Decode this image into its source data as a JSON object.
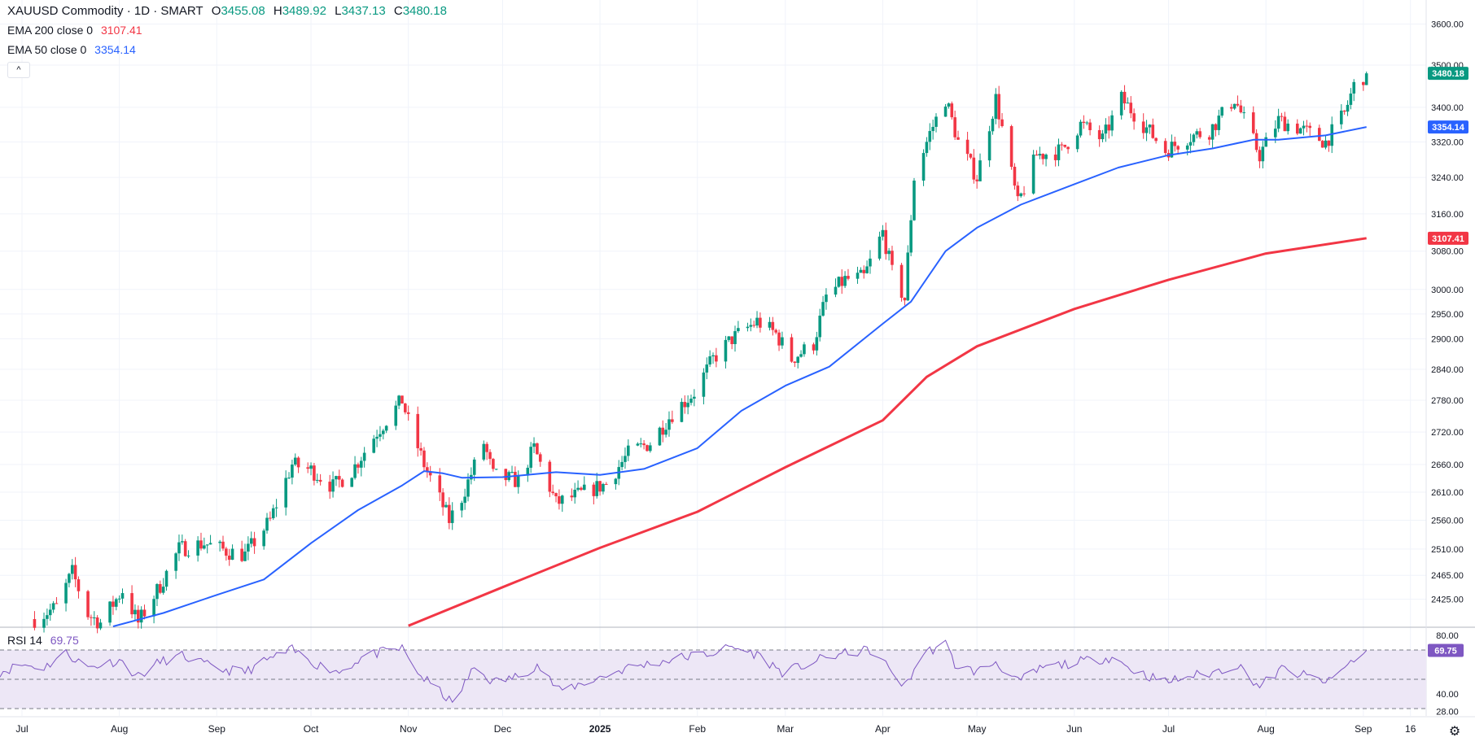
{
  "header": {
    "symbol_title": "XAUUSD Commodity · 1D · SMART",
    "ohlc": [
      {
        "key": "O",
        "value": "3455.08"
      },
      {
        "key": "H",
        "value": "3489.92"
      },
      {
        "key": "L",
        "value": "3437.13"
      },
      {
        "key": "C",
        "value": "3480.18"
      }
    ],
    "ema200_label": "EMA 200 close 0",
    "ema200_value": "3107.41",
    "ema50_label": "EMA 50 close 0",
    "ema50_value": "3354.14",
    "collapse_glyph": "^"
  },
  "rsi_header": {
    "label": "RSI 14",
    "value": "69.75"
  },
  "colors": {
    "up": "#089981",
    "down": "#f23645",
    "ema50": "#2962ff",
    "ema200": "#f23645",
    "rsi_line": "#7e57c2",
    "rsi_band": "#ede7f6",
    "grid": "#f0f3fa",
    "axis_text": "#131722"
  },
  "icons": {
    "settings": "gear-icon"
  },
  "chart_data": [
    {
      "type": "candlestick",
      "title": "XAUUSD Commodity · 1D · SMART",
      "scale": "log",
      "ylim": [
        2380,
        3660
      ],
      "xlim": [
        "2024-06-24",
        "2025-09-21"
      ],
      "y_ticks": [
        "3600.00",
        "3500.00",
        "3400.00",
        "3320.00",
        "3240.00",
        "3160.00",
        "3080.00",
        "3000.00",
        "2950.00",
        "2900.00",
        "2840.00",
        "2780.00",
        "2720.00",
        "2660.00",
        "2610.00",
        "2560.00",
        "2510.00",
        "2465.00",
        "2425.00"
      ],
      "x_ticks": [
        {
          "label": "Jul",
          "date": "2024-07-01"
        },
        {
          "label": "Aug",
          "date": "2024-08-01"
        },
        {
          "label": "Sep",
          "date": "2024-09-01"
        },
        {
          "label": "Oct",
          "date": "2024-10-01"
        },
        {
          "label": "Nov",
          "date": "2024-11-01"
        },
        {
          "label": "Dec",
          "date": "2024-12-01"
        },
        {
          "label": "2025",
          "date": "2025-01-01"
        },
        {
          "label": "Feb",
          "date": "2025-02-01"
        },
        {
          "label": "Mar",
          "date": "2025-03-01"
        },
        {
          "label": "Apr",
          "date": "2025-04-01"
        },
        {
          "label": "May",
          "date": "2025-05-01"
        },
        {
          "label": "Jun",
          "date": "2025-06-01"
        },
        {
          "label": "Jul",
          "date": "2025-07-01"
        },
        {
          "label": "Aug",
          "date": "2025-08-01"
        },
        {
          "label": "Sep",
          "date": "2025-09-01"
        },
        {
          "label": "16",
          "date": "2025-09-16"
        }
      ],
      "price_markers": [
        {
          "value": "3480.18",
          "color": "#089981"
        },
        {
          "value": "3354.14",
          "color": "#2962ff"
        },
        {
          "value": "3107.41",
          "color": "#f23645"
        }
      ],
      "price_series": [
        [
          "2024-07-05",
          2392
        ],
        [
          "2024-07-12",
          2412
        ],
        [
          "2024-07-17",
          2470
        ],
        [
          "2024-07-22",
          2400
        ],
        [
          "2024-07-26",
          2386
        ],
        [
          "2024-08-02",
          2440
        ],
        [
          "2024-08-07",
          2386
        ],
        [
          "2024-08-14",
          2448
        ],
        [
          "2024-08-20",
          2510
        ],
        [
          "2024-08-28",
          2520
        ],
        [
          "2024-09-05",
          2505
        ],
        [
          "2024-09-10",
          2500
        ],
        [
          "2024-09-18",
          2560
        ],
        [
          "2024-09-25",
          2660
        ],
        [
          "2024-10-01",
          2650
        ],
        [
          "2024-10-08",
          2620
        ],
        [
          "2024-10-14",
          2648
        ],
        [
          "2024-10-22",
          2720
        ],
        [
          "2024-10-30",
          2780
        ],
        [
          "2024-11-01",
          2740
        ],
        [
          "2024-11-06",
          2660
        ],
        [
          "2024-11-14",
          2560
        ],
        [
          "2024-11-18",
          2600
        ],
        [
          "2024-11-25",
          2700
        ],
        [
          "2024-11-28",
          2640
        ],
        [
          "2024-12-06",
          2630
        ],
        [
          "2024-12-11",
          2690
        ],
        [
          "2024-12-18",
          2590
        ],
        [
          "2024-12-25",
          2605
        ],
        [
          "2025-01-03",
          2625
        ],
        [
          "2025-01-10",
          2680
        ],
        [
          "2025-01-17",
          2700
        ],
        [
          "2025-01-24",
          2755
        ],
        [
          "2025-01-31",
          2795
        ],
        [
          "2025-02-06",
          2860
        ],
        [
          "2025-02-12",
          2900
        ],
        [
          "2025-02-20",
          2935
        ],
        [
          "2025-02-26",
          2910
        ],
        [
          "2025-03-03",
          2860
        ],
        [
          "2025-03-10",
          2890
        ],
        [
          "2025-03-14",
          2985
        ],
        [
          "2025-03-20",
          3020
        ],
        [
          "2025-03-26",
          3025
        ],
        [
          "2025-04-01",
          3120
        ],
        [
          "2025-04-04",
          3035
        ],
        [
          "2025-04-08",
          2980
        ],
        [
          "2025-04-11",
          3240
        ],
        [
          "2025-04-16",
          3340
        ],
        [
          "2025-04-21",
          3420
        ],
        [
          "2025-04-25",
          3320
        ],
        [
          "2025-05-01",
          3240
        ],
        [
          "2025-05-07",
          3420
        ],
        [
          "2025-05-14",
          3180
        ],
        [
          "2025-05-20",
          3290
        ],
        [
          "2025-05-28",
          3300
        ],
        [
          "2025-06-03",
          3360
        ],
        [
          "2025-06-10",
          3325
        ],
        [
          "2025-06-16",
          3420
        ],
        [
          "2025-06-23",
          3360
        ],
        [
          "2025-06-30",
          3300
        ],
        [
          "2025-07-07",
          3330
        ],
        [
          "2025-07-14",
          3345
        ],
        [
          "2025-07-22",
          3420
        ],
        [
          "2025-07-30",
          3290
        ],
        [
          "2025-08-05",
          3370
        ],
        [
          "2025-08-12",
          3350
        ],
        [
          "2025-08-20",
          3320
        ],
        [
          "2025-08-26",
          3385
        ],
        [
          "2025-08-29",
          3450
        ],
        [
          "2025-09-02",
          3480
        ]
      ],
      "ema50_series": [
        [
          "2024-07-30",
          2380
        ],
        [
          "2024-08-15",
          2402
        ],
        [
          "2024-09-01",
          2432
        ],
        [
          "2024-09-16",
          2458
        ],
        [
          "2024-10-01",
          2520
        ],
        [
          "2024-10-16",
          2578
        ],
        [
          "2024-10-30",
          2622
        ],
        [
          "2024-11-06",
          2648
        ],
        [
          "2024-11-12",
          2644
        ],
        [
          "2024-11-18",
          2636
        ],
        [
          "2024-12-01",
          2637
        ],
        [
          "2024-12-18",
          2646
        ],
        [
          "2025-01-01",
          2641
        ],
        [
          "2025-01-15",
          2652
        ],
        [
          "2025-02-01",
          2690
        ],
        [
          "2025-02-15",
          2760
        ],
        [
          "2025-03-01",
          2808
        ],
        [
          "2025-03-15",
          2845
        ],
        [
          "2025-04-01",
          2930
        ],
        [
          "2025-04-10",
          2975
        ],
        [
          "2025-04-21",
          3080
        ],
        [
          "2025-05-01",
          3130
        ],
        [
          "2025-05-15",
          3180
        ],
        [
          "2025-06-01",
          3225
        ],
        [
          "2025-06-15",
          3262
        ],
        [
          "2025-07-01",
          3290
        ],
        [
          "2025-07-15",
          3305
        ],
        [
          "2025-07-28",
          3325
        ],
        [
          "2025-08-05",
          3325
        ],
        [
          "2025-08-20",
          3335
        ],
        [
          "2025-09-02",
          3354.14
        ]
      ],
      "ema200_series": [
        [
          "2024-11-01",
          2381
        ],
        [
          "2024-12-01",
          2445
        ],
        [
          "2025-01-01",
          2512
        ],
        [
          "2025-02-01",
          2575
        ],
        [
          "2025-03-01",
          2655
        ],
        [
          "2025-04-01",
          2742
        ],
        [
          "2025-04-15",
          2825
        ],
        [
          "2025-05-01",
          2885
        ],
        [
          "2025-06-01",
          2960
        ],
        [
          "2025-07-01",
          3020
        ],
        [
          "2025-08-01",
          3075
        ],
        [
          "2025-09-02",
          3107.41
        ]
      ]
    },
    {
      "type": "line",
      "title": "RSI 14",
      "ylim": [
        25,
        85
      ],
      "y_ticks": [
        "80.00",
        "40.00",
        "28.00"
      ],
      "levels": [
        70,
        50,
        30
      ],
      "series": [
        {
          "values": [
            [
              "2024-06-24",
              55
            ],
            [
              "2024-07-01",
              60
            ],
            [
              "2024-07-08",
              58
            ],
            [
              "2024-07-15",
              68
            ],
            [
              "2024-07-22",
              58
            ],
            [
              "2024-08-01",
              63
            ],
            [
              "2024-08-07",
              52
            ],
            [
              "2024-08-14",
              62
            ],
            [
              "2024-08-21",
              66
            ],
            [
              "2024-09-01",
              57
            ],
            [
              "2024-09-10",
              55
            ],
            [
              "2024-09-18",
              64
            ],
            [
              "2024-09-25",
              70
            ],
            [
              "2024-10-03",
              60
            ],
            [
              "2024-10-10",
              55
            ],
            [
              "2024-10-18",
              66
            ],
            [
              "2024-10-30",
              71
            ],
            [
              "2024-11-05",
              52
            ],
            [
              "2024-11-12",
              40
            ],
            [
              "2024-11-15",
              33
            ],
            [
              "2024-11-22",
              58
            ],
            [
              "2024-11-28",
              48
            ],
            [
              "2024-12-06",
              52
            ],
            [
              "2024-12-12",
              60
            ],
            [
              "2024-12-19",
              42
            ],
            [
              "2025-01-02",
              52
            ],
            [
              "2025-01-10",
              58
            ],
            [
              "2025-01-20",
              62
            ],
            [
              "2025-01-30",
              66
            ],
            [
              "2025-02-06",
              68
            ],
            [
              "2025-02-12",
              72
            ],
            [
              "2025-02-20",
              67
            ],
            [
              "2025-02-28",
              55
            ],
            [
              "2025-03-05",
              58
            ],
            [
              "2025-03-14",
              65
            ],
            [
              "2025-03-21",
              68
            ],
            [
              "2025-03-28",
              70
            ],
            [
              "2025-04-03",
              58
            ],
            [
              "2025-04-08",
              45
            ],
            [
              "2025-04-14",
              68
            ],
            [
              "2025-04-21",
              74
            ],
            [
              "2025-04-24",
              60
            ],
            [
              "2025-05-01",
              55
            ],
            [
              "2025-05-07",
              62
            ],
            [
              "2025-05-14",
              48
            ],
            [
              "2025-05-22",
              58
            ],
            [
              "2025-06-03",
              62
            ],
            [
              "2025-06-13",
              65
            ],
            [
              "2025-06-20",
              56
            ],
            [
              "2025-06-30",
              48
            ],
            [
              "2025-07-07",
              52
            ],
            [
              "2025-07-14",
              54
            ],
            [
              "2025-07-23",
              60
            ],
            [
              "2025-07-30",
              45
            ],
            [
              "2025-08-06",
              57
            ],
            [
              "2025-08-14",
              52
            ],
            [
              "2025-08-21",
              48
            ],
            [
              "2025-08-27",
              60
            ],
            [
              "2025-09-02",
              69.75
            ]
          ]
        }
      ]
    }
  ]
}
